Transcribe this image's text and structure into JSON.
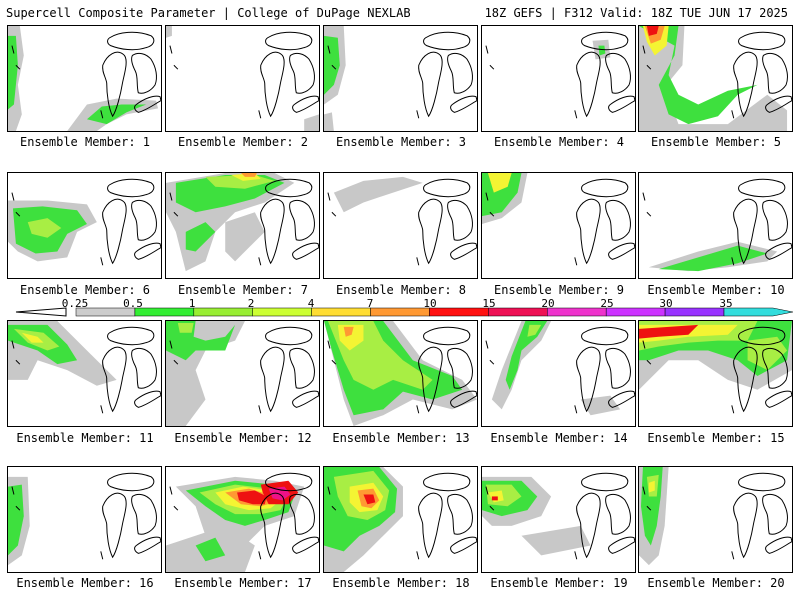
{
  "header": {
    "left": "Supercell Composite Parameter | College of DuPage NEXLAB",
    "right": "18Z GEFS | F312 Valid: 18Z TUE JUN 17 2025"
  },
  "caption_prefix": "Ensemble Member:",
  "members": [
    "1",
    "2",
    "3",
    "4",
    "5",
    "6",
    "7",
    "8",
    "9",
    "10",
    "11",
    "12",
    "13",
    "14",
    "15",
    "16",
    "17",
    "18",
    "19",
    "20"
  ],
  "colorbar": {
    "labels": [
      "0.25",
      "0.5",
      "1",
      "2",
      "4",
      "7",
      "10",
      "15",
      "20",
      "25",
      "30",
      "35"
    ],
    "colors": [
      "#cccccc",
      "#33ee33",
      "#99ee33",
      "#ccff33",
      "#ffdd33",
      "#ff9933",
      "#ff1111",
      "#ee1155",
      "#ee33cc",
      "#cc33ff",
      "#9933ff",
      "#33dddd"
    ]
  },
  "palette": {
    "gray": "#c8c8c8",
    "green": "#3ee03e",
    "lightgreen": "#a8ee44",
    "yellow": "#f4f433",
    "orange": "#ff9933",
    "red": "#ee1111",
    "magenta": "#ee1188"
  }
}
